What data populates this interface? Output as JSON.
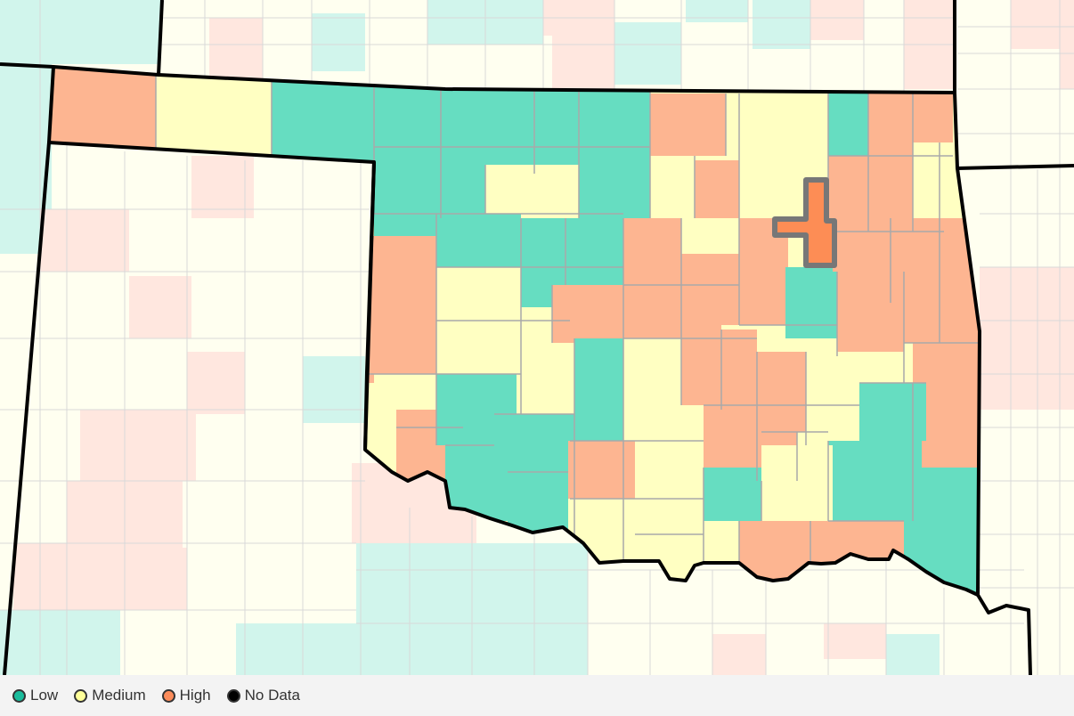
{
  "map": {
    "state": "Oklahoma",
    "colors": {
      "low": "#66ddc1",
      "medium": "#ffffc2",
      "high": "#fdb591",
      "selected": "#fd8d55",
      "neighbor_low": "#d1f5ec",
      "neighbor_medium": "#fffff0",
      "neighbor_high": "#ffe7df",
      "county_border": "#a9a9a9",
      "state_border": "#000000"
    }
  },
  "legend": {
    "items": [
      {
        "label": "Low",
        "color": "#1abc9c"
      },
      {
        "label": "Medium",
        "color": "#ffff99"
      },
      {
        "label": "High",
        "color": "#fb8c5b"
      },
      {
        "label": "No Data",
        "color": "#000000"
      }
    ]
  }
}
